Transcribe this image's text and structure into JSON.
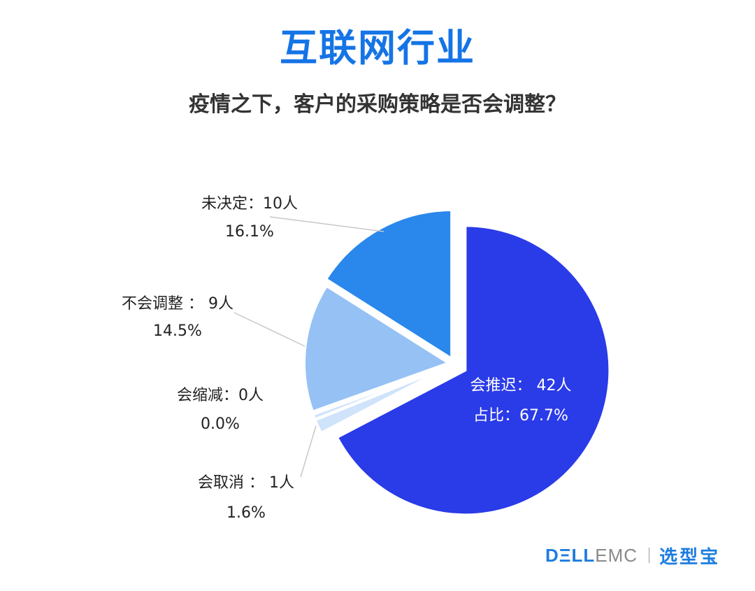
{
  "title": "互联网行业",
  "subtitle": "疫情之下，客户的采购策略是否会调整？",
  "colors": {
    "title": "#1574e6",
    "subtitle": "#333333",
    "label": "#222222",
    "inner_label": "#ffffff",
    "leader": "#c8c8c8",
    "footer_brand": "#1c7de0",
    "footer_emc": "#8a8a8a",
    "footer_sep": "#9a9a9a",
    "footer_cn": "#1c7de0"
  },
  "chart_data": {
    "type": "pie",
    "unit": "人",
    "start_at": "12 o'clock, clockwise",
    "label_placement": "slice 1 label inside, others outside left with leader lines",
    "exploded": true,
    "slices": [
      {
        "label_line1": "会推迟：  42人",
        "label_line2": "占比：67.7%",
        "value": 42,
        "percent": 67.7,
        "color": "#2a3be8"
      },
      {
        "label_line1": "会取消 ： 1人",
        "label_line2": "1.6%",
        "value": 1,
        "percent": 1.6,
        "color": "#cfe3fb"
      },
      {
        "label_line1": "会缩减：0人",
        "label_line2": "0.0%",
        "value": 0,
        "percent": 0.0,
        "color": "#cfe3fb"
      },
      {
        "label_line1": "不会调整 ： 9人",
        "label_line2": "14.5%",
        "value": 9,
        "percent": 14.5,
        "color": "#96c1f5"
      },
      {
        "label_line1": "未决定：10人",
        "label_line2": "16.1%",
        "value": 10,
        "percent": 16.1,
        "color": "#2a87ec"
      }
    ]
  },
  "footer": {
    "brand_dell": "DΞLL",
    "brand_emc": "EMC",
    "brand_cn": "选型宝"
  }
}
